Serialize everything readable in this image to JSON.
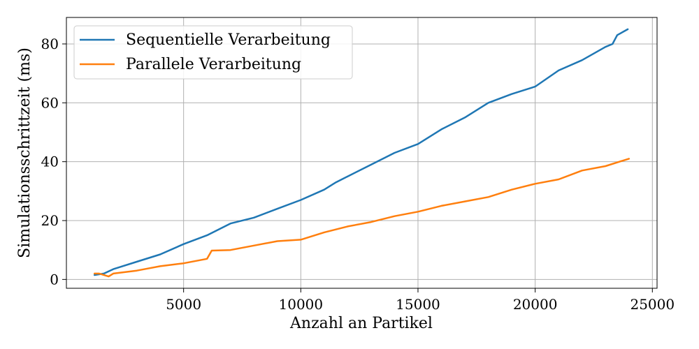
{
  "chart_data": {
    "type": "line",
    "xlabel": "Anzahl an Partikel",
    "ylabel": "Simulationsschrittzeit (ms)",
    "xlim": [
      0,
      25200
    ],
    "ylim": [
      -3,
      89
    ],
    "xticks": [
      5000,
      10000,
      15000,
      20000,
      25000
    ],
    "xtick_labels": [
      "5000",
      "10000",
      "15000",
      "20000",
      "25000"
    ],
    "yticks": [
      0,
      20,
      40,
      60,
      80
    ],
    "ytick_labels": [
      "0",
      "20",
      "40",
      "60",
      "80"
    ],
    "grid": true,
    "legend_position": "top-left",
    "series": [
      {
        "name": "Sequentielle Verarbeitung",
        "color": "#1f77b4",
        "x": [
          1200,
          1600,
          2000,
          3000,
          4000,
          5000,
          6000,
          7000,
          8000,
          9000,
          10000,
          11000,
          11500,
          12000,
          13000,
          14000,
          15000,
          16000,
          17000,
          18000,
          19000,
          20000,
          21000,
          22000,
          23000,
          23300,
          23500,
          23950
        ],
        "y": [
          1.5,
          2,
          3.5,
          6,
          8.5,
          12,
          15,
          19,
          21,
          24,
          27,
          30.5,
          33,
          35,
          39,
          43,
          46,
          51,
          55,
          60,
          63,
          65.5,
          71,
          74.5,
          79,
          80,
          83,
          85
        ]
      },
      {
        "name": "Parallele Verarbeitung",
        "color": "#ff7f0e",
        "x": [
          1200,
          1400,
          1800,
          2000,
          3000,
          4000,
          5000,
          6000,
          6200,
          7000,
          8000,
          9000,
          10000,
          11000,
          12000,
          13000,
          14000,
          15000,
          16000,
          17000,
          18000,
          19000,
          20000,
          21000,
          22000,
          23000,
          24000
        ],
        "y": [
          2,
          2,
          1,
          2,
          3,
          4.5,
          5.5,
          7,
          9.8,
          10,
          11.5,
          13,
          13.5,
          16,
          18,
          19.5,
          21.5,
          23,
          25,
          26.5,
          28,
          30.5,
          32.5,
          34,
          37,
          38.5,
          41
        ]
      }
    ]
  }
}
